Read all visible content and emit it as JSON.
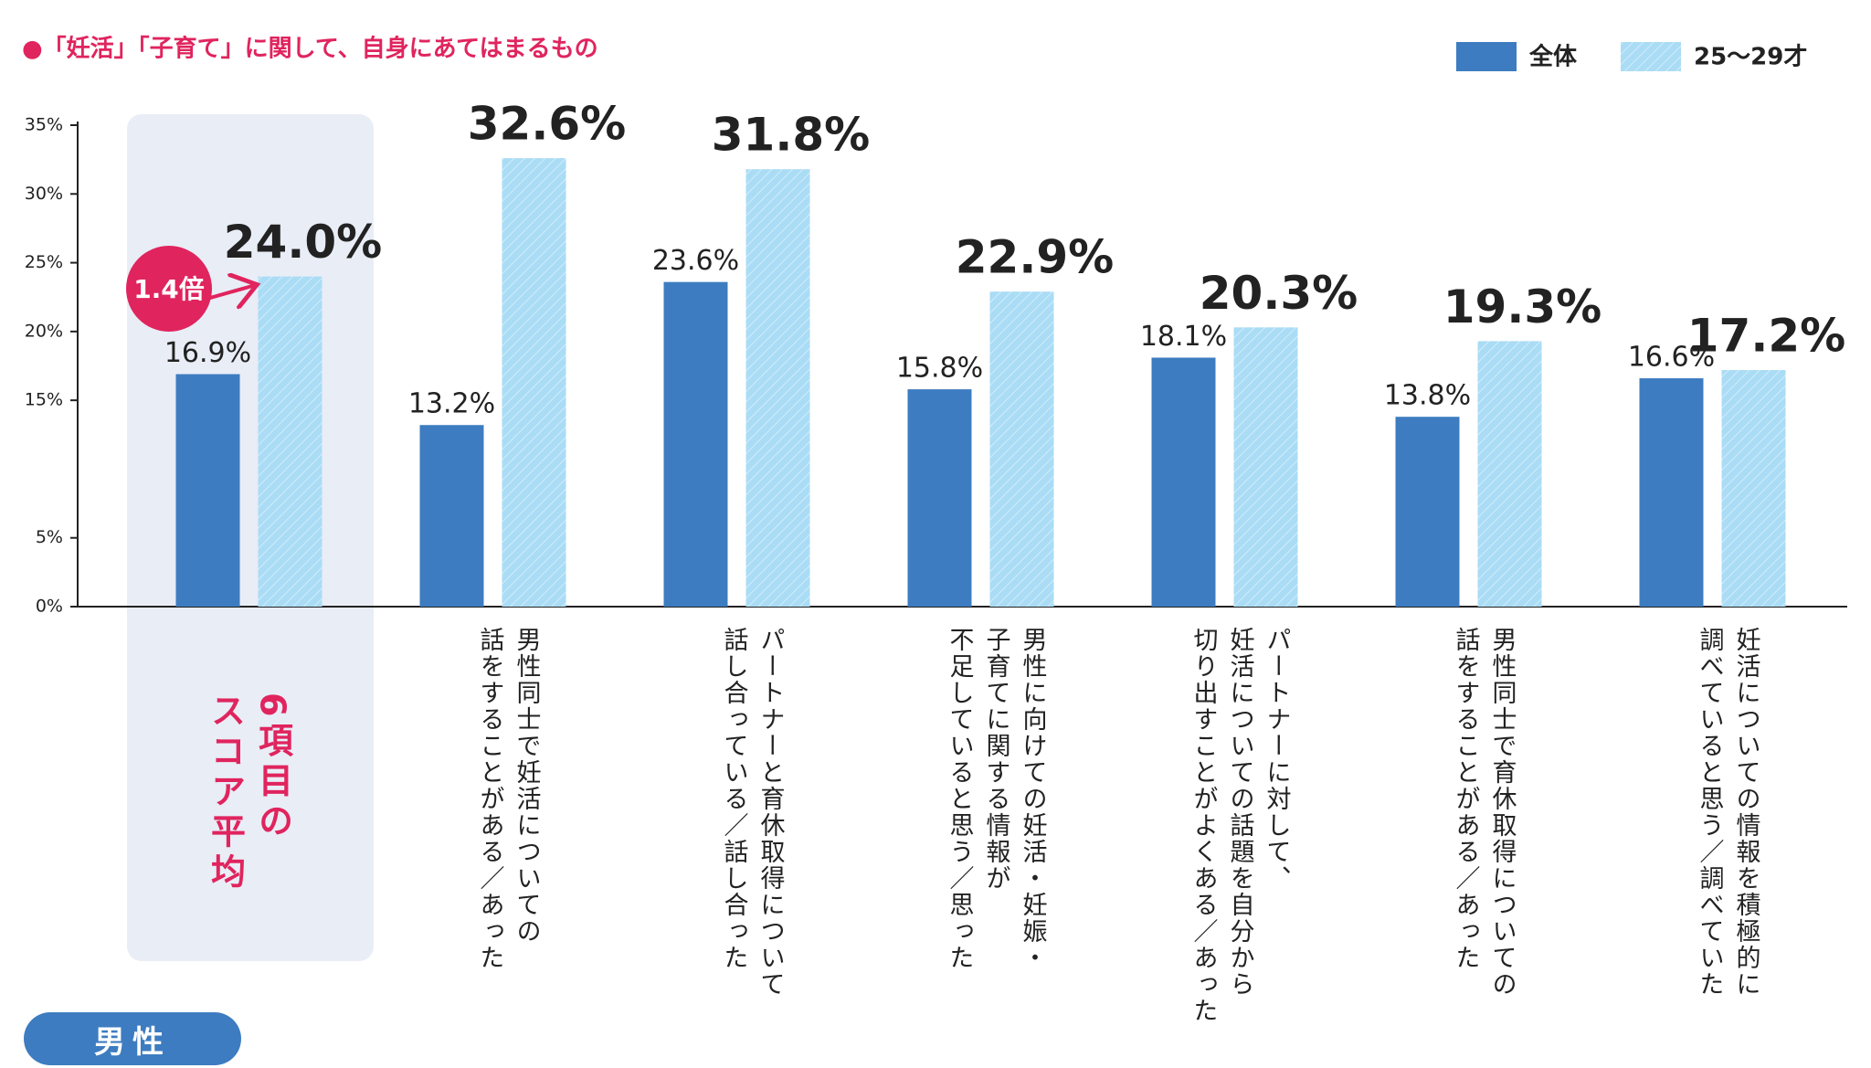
{
  "chart_data": {
    "type": "bar",
    "title": "●「妊活」「子育て」に関して、自身にあてはまるもの",
    "categories": [
      "6項目の\nスコア平均",
      "男性同士で妊活についての\n話をすることがある／あった",
      "パートナーと育休取得について\n話し合っている／話し合った",
      "男性に向けての妊活・妊娠・\n子育てに関する情報が\n不足していると思う／思った",
      "パートナーに対して、\n妊活についての話題を自分から\n切り出すことがよくある／あった",
      "男性同士で育休取得についての\n話をすることがある／あった",
      "妊活についての情報を積極的に\n調べていると思う／調べていた"
    ],
    "series": [
      {
        "name": "全体",
        "color": "#3d7cc0",
        "values": [
          16.9,
          13.2,
          23.6,
          15.8,
          18.1,
          13.8,
          16.6
        ],
        "value_labels": [
          "16.9%",
          "13.2%",
          "23.6%",
          "15.8%",
          "18.1%",
          "13.8%",
          "16.6%"
        ]
      },
      {
        "name": "25～29才",
        "color": "#aadcf5",
        "values": [
          24.0,
          32.6,
          31.8,
          22.9,
          20.3,
          19.3,
          17.2
        ],
        "value_labels": [
          "24.0%",
          "32.6%",
          "31.8%",
          "22.9%",
          "20.3%",
          "19.3%",
          "17.2%"
        ]
      }
    ],
    "ylim": [
      0,
      35
    ],
    "yticks": [
      {
        "value": 0,
        "label": "0%"
      },
      {
        "value": 5,
        "label": "5%"
      },
      {
        "value": 15,
        "label": "15%"
      },
      {
        "value": 20,
        "label": "20%"
      },
      {
        "value": 25,
        "label": "25%"
      },
      {
        "value": 30,
        "label": "30%"
      },
      {
        "value": 35,
        "label": "35%"
      }
    ],
    "annotation": "1.4倍",
    "panel_label": "男性"
  }
}
